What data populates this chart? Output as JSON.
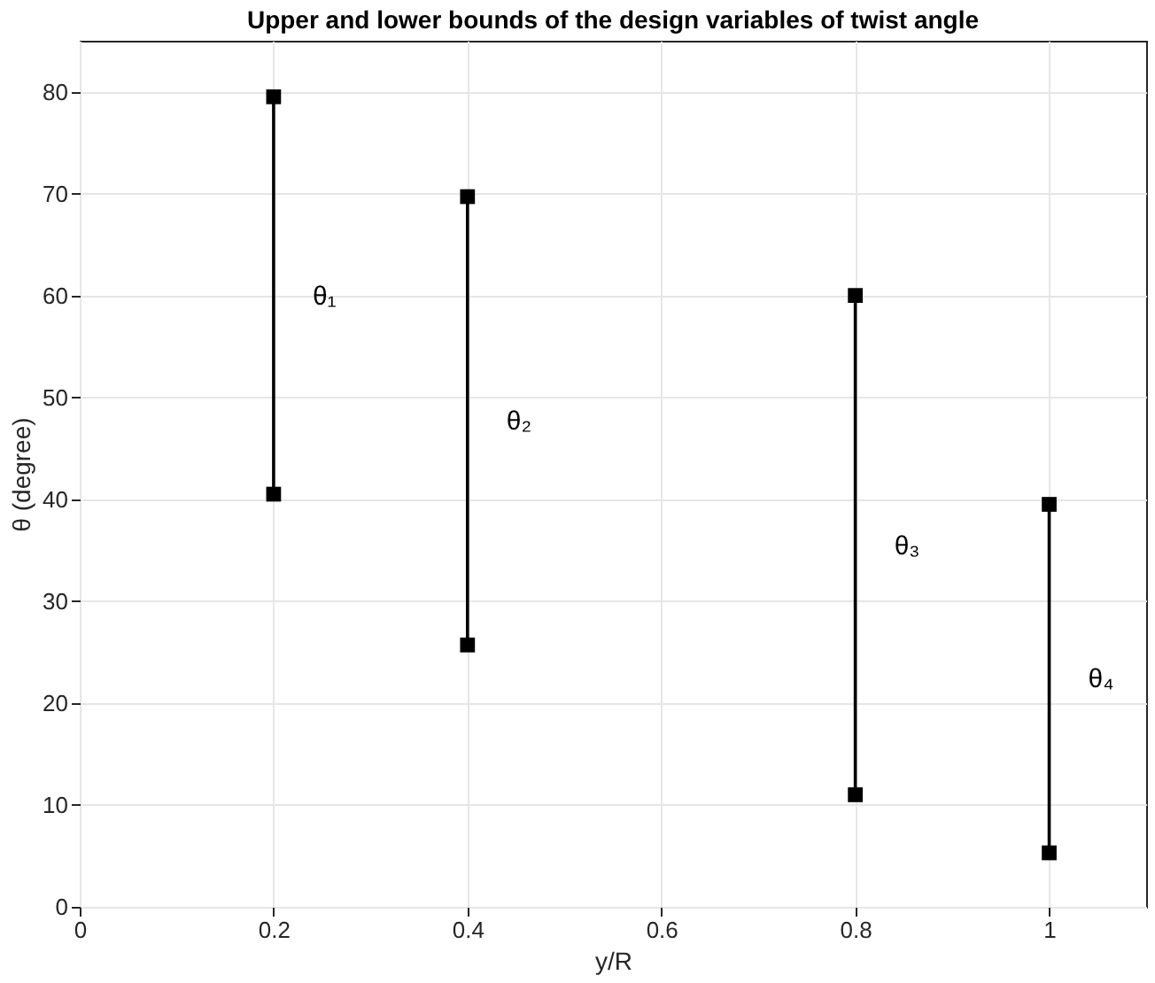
{
  "chart_data": {
    "type": "line",
    "title": "Upper and lower bounds of the design variables of twist angle",
    "xlabel": "y/R",
    "ylabel": "θ (degree)",
    "series": [
      {
        "color": "#000000",
        "x": [
          0.2,
          0.2
        ],
        "values": [
          40.5,
          79.5
        ]
      },
      {
        "color": "#000000",
        "x": [
          0.4,
          0.4
        ],
        "values": [
          25.7,
          69.7
        ]
      },
      {
        "color": "#000000",
        "x": [
          0.8,
          0.8
        ],
        "values": [
          11,
          60
        ]
      },
      {
        "color": "#000000",
        "x": [
          1,
          1
        ],
        "values": [
          5.3,
          39.5
        ]
      }
    ],
    "annotations": [
      "θ₁",
      "θ₂",
      "θ₃",
      "θ₄"
    ],
    "xlim": [
      0,
      1.1
    ],
    "xticks": [
      {
        "value": 0,
        "label": "0"
      },
      0.2,
      0.4,
      0.6,
      0.8,
      {
        "value": 1,
        "label": "1"
      }
    ],
    "ylim": [
      0,
      85
    ],
    "yticks": [
      0,
      10,
      20,
      30,
      40,
      50,
      60,
      70,
      80
    ],
    "grid": true,
    "marker": "square",
    "line_style": "solid"
  }
}
